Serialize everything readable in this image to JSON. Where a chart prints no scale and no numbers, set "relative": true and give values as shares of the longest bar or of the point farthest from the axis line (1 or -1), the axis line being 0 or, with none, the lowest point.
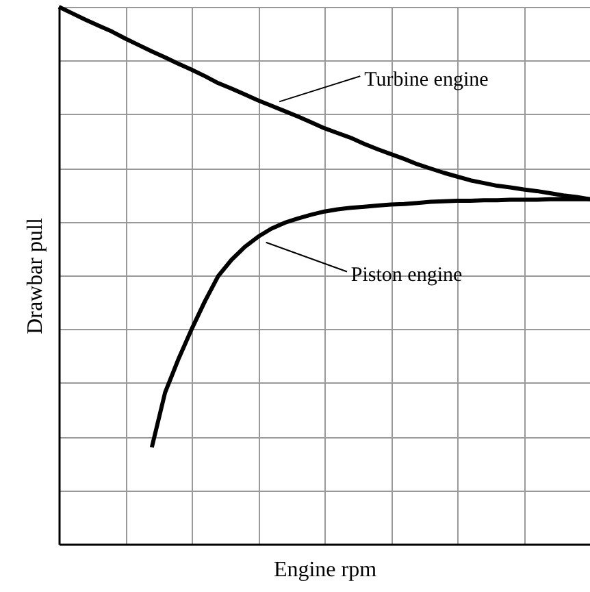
{
  "chart_data": {
    "type": "line",
    "relative": true,
    "xlabel": "Engine rpm",
    "ylabel": "Drawbar pull",
    "grid": true,
    "categories": [
      null,
      null,
      null,
      null,
      null,
      null,
      null,
      null,
      null,
      null,
      null,
      null,
      null,
      null,
      null,
      null,
      null,
      null,
      null,
      null,
      null,
      null,
      null,
      null,
      null,
      null,
      null,
      null,
      null,
      null,
      null,
      null,
      null,
      null,
      null,
      null,
      null,
      null,
      null,
      null,
      null
    ],
    "series": [
      {
        "name": "Turbine engine",
        "color": "#000000",
        "values": [
          1.0,
          0.988,
          0.976,
          0.965,
          0.954,
          0.941,
          0.929,
          0.917,
          0.906,
          0.894,
          0.883,
          0.871,
          0.858,
          0.848,
          0.837,
          0.826,
          0.816,
          0.806,
          0.796,
          0.785,
          0.774,
          0.765,
          0.756,
          0.745,
          0.735,
          0.726,
          0.717,
          0.707,
          0.699,
          0.691,
          0.684,
          0.677,
          0.672,
          0.667,
          0.664,
          0.66,
          0.657,
          0.653,
          0.649,
          0.646,
          0.642
        ]
      },
      {
        "name": "Piston engine",
        "color": "#000000",
        "values": [
          null,
          null,
          null,
          null,
          null,
          null,
          null,
          0.18,
          0.282,
          0.344,
          0.4,
          0.452,
          0.499,
          0.529,
          0.553,
          0.572,
          0.587,
          0.598,
          0.606,
          0.613,
          0.619,
          0.623,
          0.626,
          0.628,
          0.63,
          0.632,
          0.633,
          0.635,
          0.637,
          0.638,
          0.639,
          0.639,
          0.64,
          0.64,
          0.641,
          0.641,
          0.641,
          0.642,
          0.642,
          0.642,
          0.642
        ]
      }
    ]
  }
}
